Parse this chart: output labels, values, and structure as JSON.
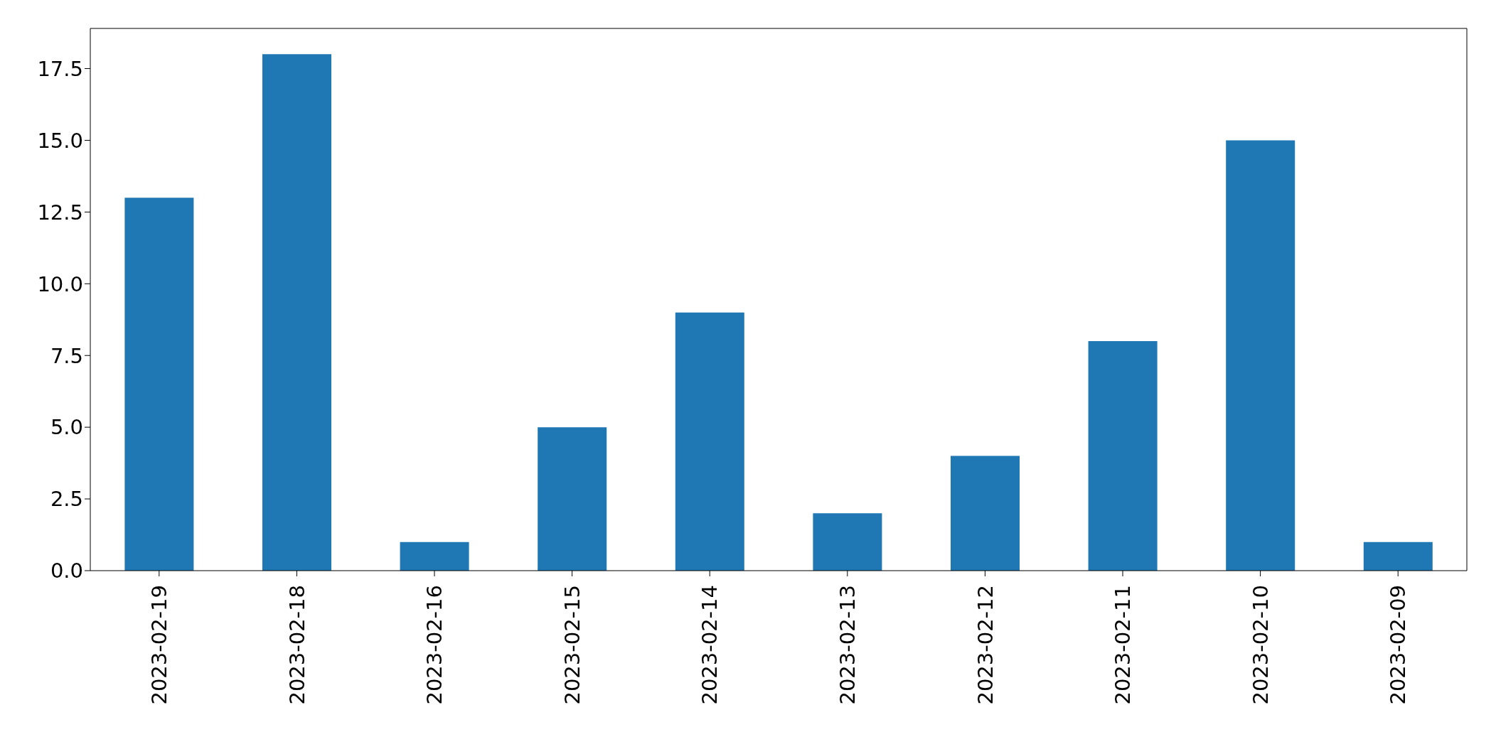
{
  "chart_data": {
    "type": "bar",
    "categories": [
      "2023-02-19",
      "2023-02-18",
      "2023-02-16",
      "2023-02-15",
      "2023-02-14",
      "2023-02-13",
      "2023-02-12",
      "2023-02-11",
      "2023-02-10",
      "2023-02-09"
    ],
    "values": [
      13,
      18,
      1,
      5,
      9,
      2,
      4,
      8,
      15,
      1
    ],
    "color": "#1f77b4",
    "ylim": [
      0,
      18.9
    ],
    "yticks": [
      {
        "value": 0,
        "label": "0.0"
      },
      2.5,
      {
        "value": 5,
        "label": "5.0"
      },
      7.5,
      {
        "value": 10,
        "label": "10.0"
      },
      12.5,
      {
        "value": 15,
        "label": "15.0"
      },
      17.5
    ],
    "grid": false
  }
}
